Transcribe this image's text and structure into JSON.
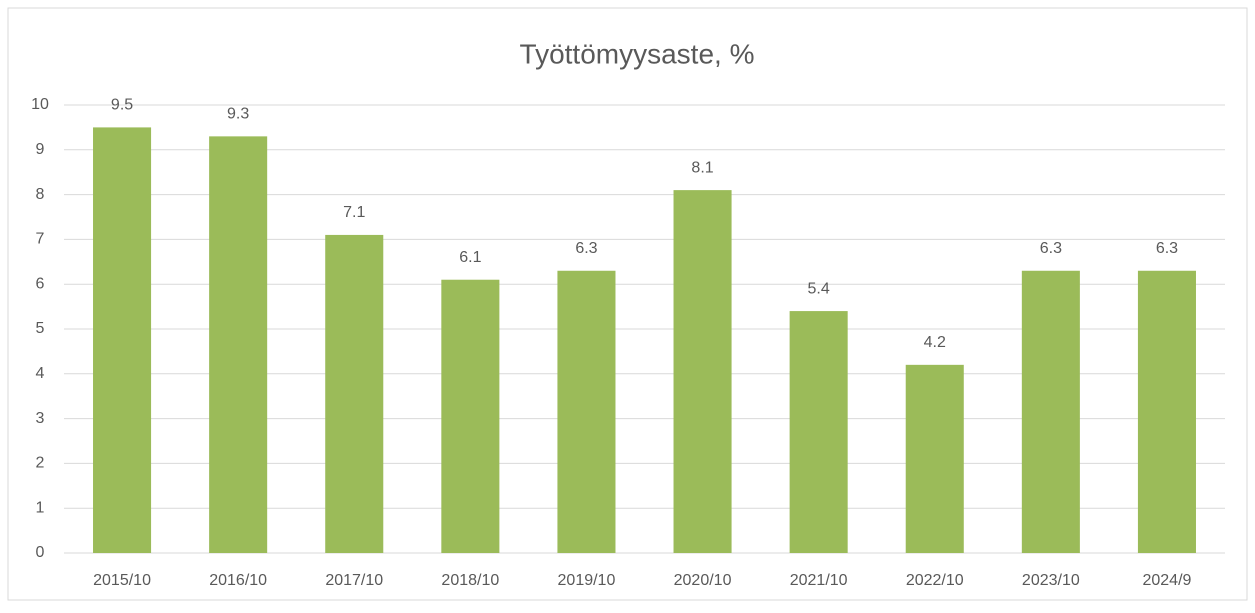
{
  "chart_data": {
    "type": "bar",
    "title": "Työttömyysaste, %",
    "categories": [
      "2015/10",
      "2016/10",
      "2017/10",
      "2018/10",
      "2019/10",
      "2020/10",
      "2021/10",
      "2022/10",
      "2023/10",
      "2024/9"
    ],
    "values": [
      9.5,
      9.3,
      7.1,
      6.1,
      6.3,
      8.1,
      5.4,
      4.2,
      6.3,
      6.3
    ],
    "color": "#9bbb59",
    "ylim": [
      0,
      10
    ],
    "yticks": [
      0,
      1,
      2,
      3,
      4,
      5,
      6,
      7,
      8,
      9,
      10
    ],
    "grid": true,
    "data_labels": true
  }
}
